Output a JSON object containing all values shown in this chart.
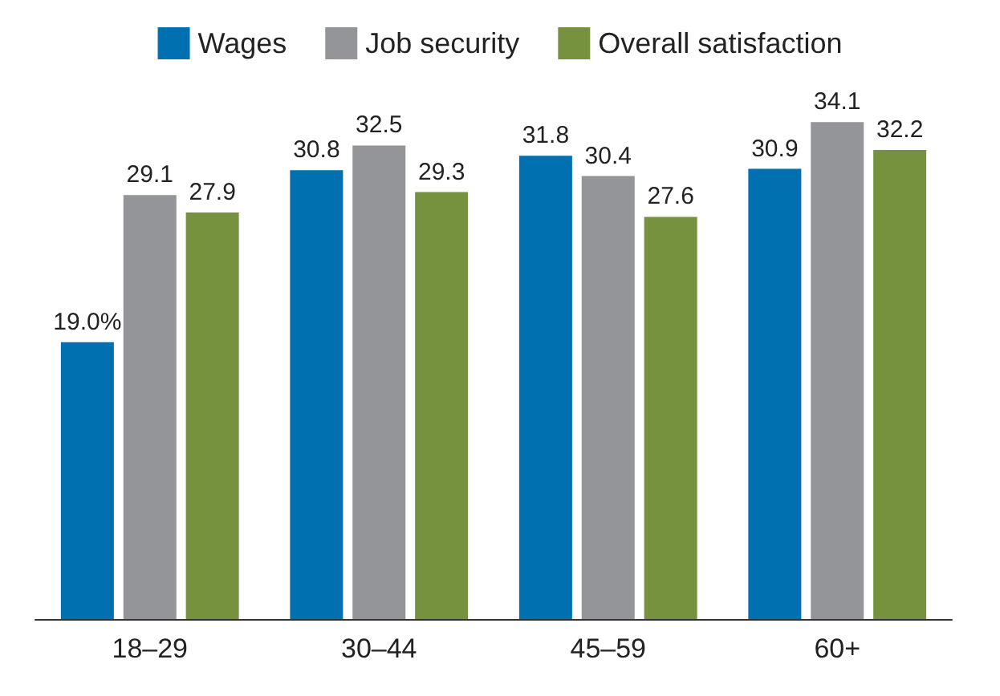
{
  "chart_data": {
    "type": "bar",
    "categories": [
      "18–29",
      "30–44",
      "45–59",
      "60+"
    ],
    "series": [
      {
        "name": "Wages",
        "color": "#0070b0",
        "values": [
          19.0,
          30.8,
          31.8,
          30.9
        ],
        "value_labels": [
          "19.0%",
          "30.8",
          "31.8",
          "30.9"
        ]
      },
      {
        "name": "Job security",
        "color": "#939598",
        "values": [
          29.1,
          32.5,
          30.4,
          34.1
        ],
        "value_labels": [
          "29.1",
          "32.5",
          "30.4",
          "34.1"
        ]
      },
      {
        "name": "Overall satisfaction",
        "color": "#77923f",
        "values": [
          27.9,
          29.3,
          27.6,
          32.2
        ],
        "value_labels": [
          "27.9",
          "29.3",
          "27.6",
          "32.2"
        ]
      }
    ],
    "legend": "top"
  }
}
